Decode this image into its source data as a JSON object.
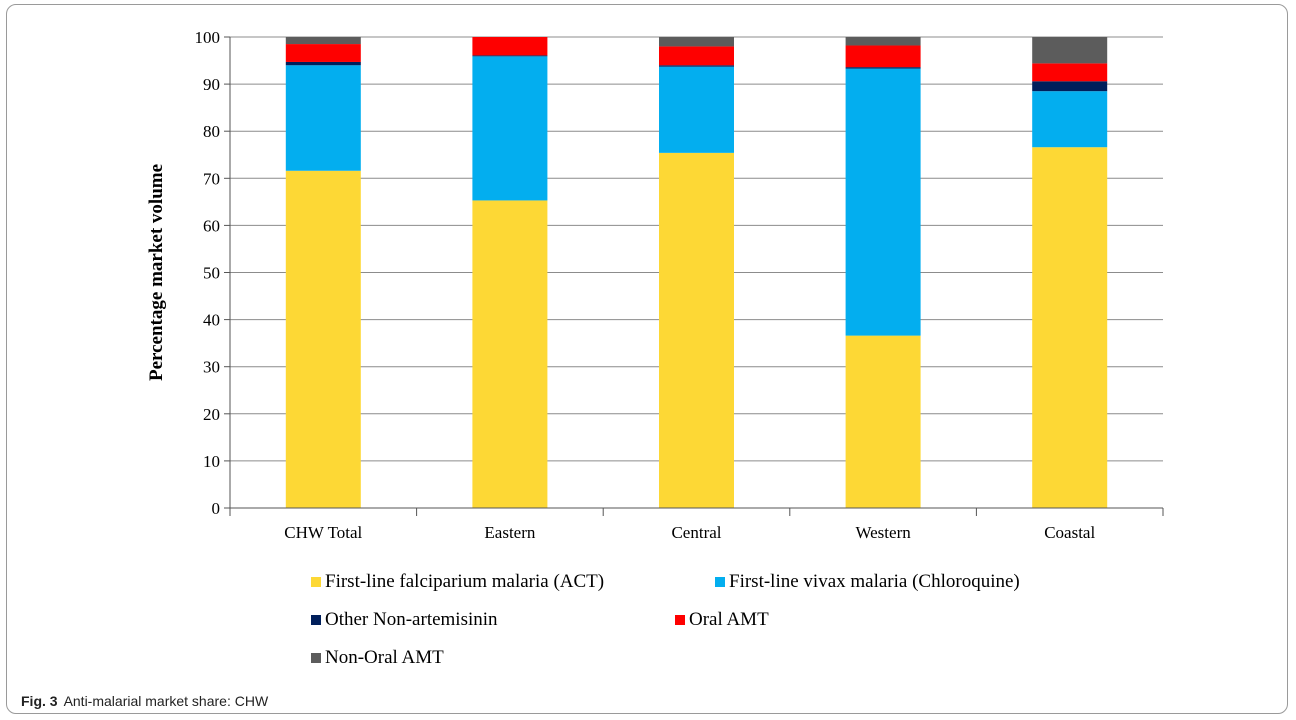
{
  "caption": {
    "label": "Fig. 3",
    "text": "Anti-malarial market share: CHW"
  },
  "chart_data": {
    "type": "bar",
    "stacked": true,
    "title": "",
    "xlabel": "",
    "ylabel": "Percentage market volume",
    "ylim": [
      0,
      100
    ],
    "yticks": [
      0,
      10,
      20,
      30,
      40,
      50,
      60,
      70,
      80,
      90,
      100
    ],
    "grid": true,
    "legend_position": "bottom",
    "categories": [
      "CHW Total",
      "Eastern",
      "Central",
      "Western",
      "Coastal"
    ],
    "series": [
      {
        "name": "First-line falciparium malaria (ACT)",
        "color": "#fdd835",
        "values": [
          71.6,
          65.3,
          75.4,
          36.6,
          76.6
        ]
      },
      {
        "name": "First-line vivax malaria (Chloroquine)",
        "color": "#03aeef",
        "values": [
          22.4,
          30.6,
          18.3,
          56.7,
          11.9
        ]
      },
      {
        "name": "Other Non-artemisinin",
        "color": "#001f5b",
        "values": [
          0.7,
          0.2,
          0.3,
          0.3,
          2.1
        ]
      },
      {
        "name": "Oral AMT",
        "color": "#fe0000",
        "values": [
          3.8,
          3.9,
          4.0,
          4.6,
          3.8
        ]
      },
      {
        "name": "Non-Oral AMT",
        "color": "#5c5c5c",
        "values": [
          1.5,
          0.0,
          2.0,
          1.8,
          5.6
        ]
      }
    ]
  }
}
